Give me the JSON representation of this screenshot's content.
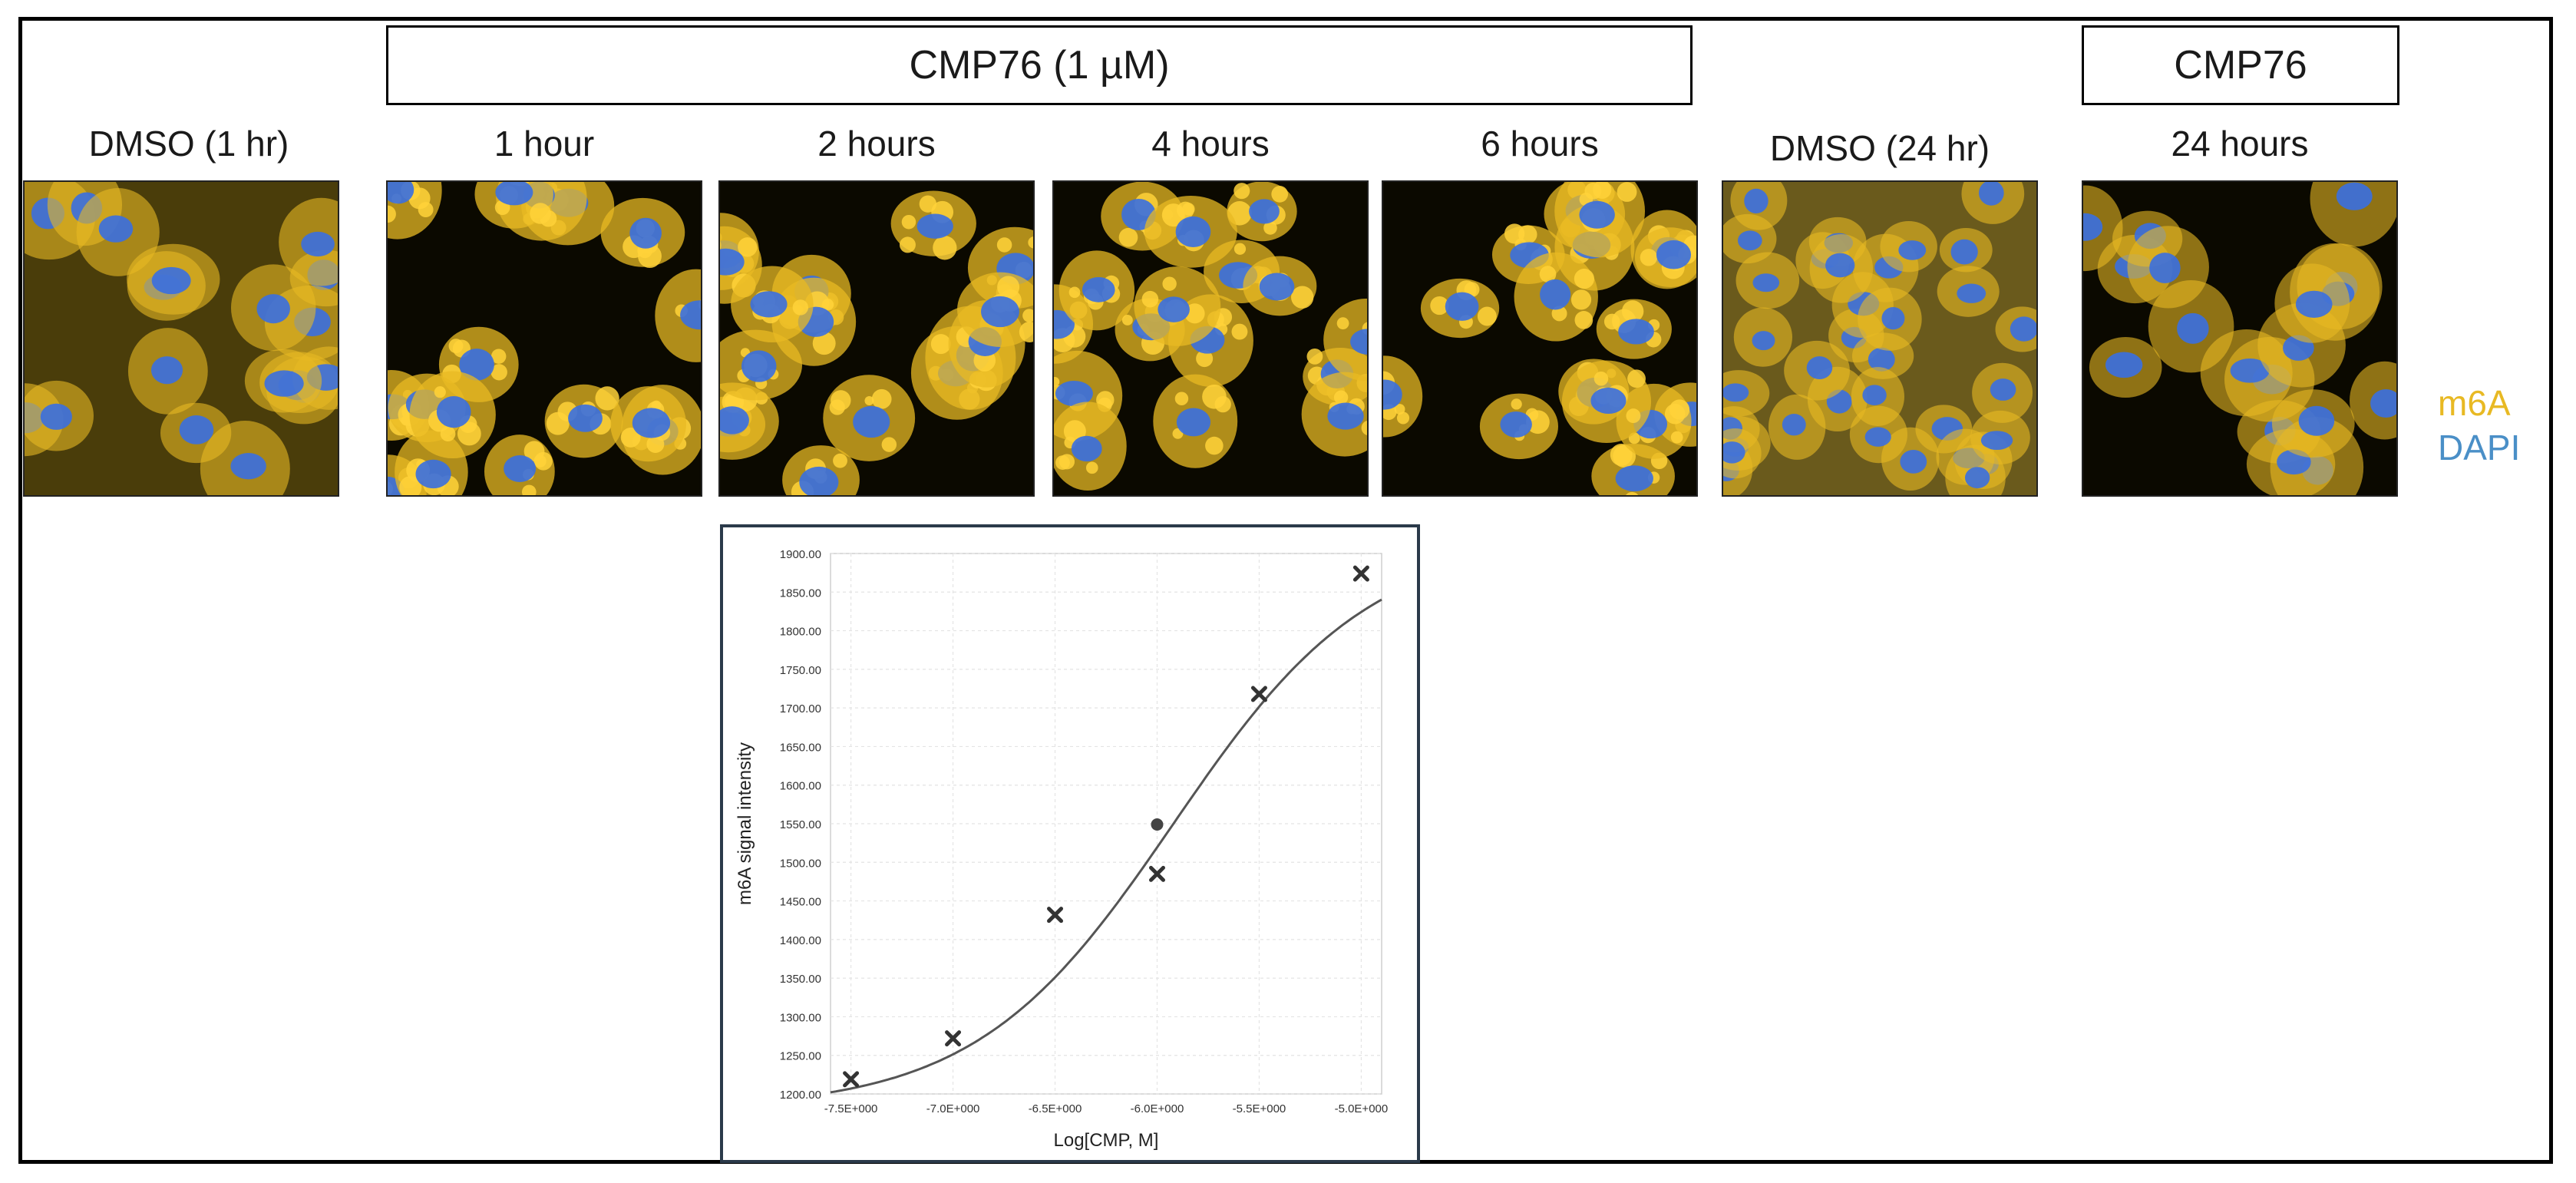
{
  "header": {
    "group_label": "CMP76 (1 µM)",
    "group_label_right": "CMP76"
  },
  "panels": [
    {
      "id": "p0",
      "label": "DMSO (1 hr)",
      "style": "dmso"
    },
    {
      "id": "p1",
      "label": "1 hour",
      "style": "treated"
    },
    {
      "id": "p2",
      "label": "2 hours",
      "style": "treated"
    },
    {
      "id": "p3",
      "label": "4 hours",
      "style": "treated"
    },
    {
      "id": "p4",
      "label": "6 hours",
      "style": "treated"
    },
    {
      "id": "p5",
      "label": "DMSO (24 hr)",
      "style": "dmso24"
    },
    {
      "id": "p6",
      "label": "24 hours",
      "style": "mixed"
    }
  ],
  "legend": {
    "m6a_label": "m6A",
    "dapi_label": "DAPI",
    "m6a_color": "#e8b923",
    "dapi_color": "#4a8fc7"
  },
  "chart_data": {
    "type": "scatter",
    "xlabel": "Log[CMP, M]",
    "ylabel": "m6A signal intensity",
    "xlim": [
      -7.6,
      -4.9
    ],
    "ylim": [
      1200,
      1900
    ],
    "x_ticks": [
      -7.5,
      -7.0,
      -6.5,
      -6.0,
      -5.5,
      -5.0
    ],
    "x_tick_labels": [
      "-7.5E+000",
      "-7.0E+000",
      "-6.5E+000",
      "-6.0E+000",
      "-5.5E+000",
      "-5.0E+000"
    ],
    "y_ticks": [
      1200,
      1250,
      1300,
      1350,
      1400,
      1450,
      1500,
      1550,
      1600,
      1650,
      1700,
      1750,
      1800,
      1850,
      1900
    ],
    "y_tick_labels": [
      "1200.00",
      "1250.00",
      "1300.00",
      "1350.00",
      "1400.00",
      "1450.00",
      "1500.00",
      "1550.00",
      "1600.00",
      "1650.00",
      "1700.00",
      "1750.00",
      "1800.00",
      "1850.00",
      "1900.00"
    ],
    "points": [
      {
        "x": -7.5,
        "y": 1219,
        "marker": "x"
      },
      {
        "x": -7.0,
        "y": 1272,
        "marker": "x"
      },
      {
        "x": -6.5,
        "y": 1432,
        "marker": "x"
      },
      {
        "x": -6.0,
        "y": 1485,
        "marker": "x"
      },
      {
        "x": -6.0,
        "y": 1549,
        "marker": "circle"
      },
      {
        "x": -5.5,
        "y": 1718,
        "marker": "x"
      },
      {
        "x": -5.0,
        "y": 1874,
        "marker": "x"
      }
    ],
    "fit": {
      "bottom": 1180,
      "top": 1920,
      "log_ec50": -5.92,
      "hill": 0.9
    },
    "grid": true
  }
}
